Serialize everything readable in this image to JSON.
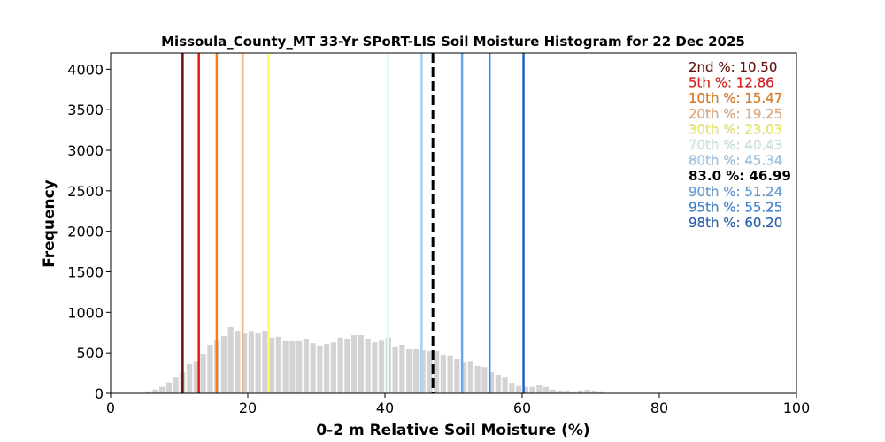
{
  "chart_data": {
    "type": "bar",
    "title": "Missoula_County_MT 33-Yr SPoRT-LIS Soil Moisture Histogram for 22 Dec 2025",
    "xlabel": "0-2 m Relative Soil Moisture (%)",
    "ylabel": "Frequency",
    "xlim": [
      0,
      100
    ],
    "ylim": [
      0,
      4200
    ],
    "xticks": [
      0,
      20,
      40,
      60,
      80,
      100
    ],
    "yticks": [
      0,
      500,
      1000,
      1500,
      2000,
      2500,
      3000,
      3500,
      4000
    ],
    "grid": false,
    "bar_color": "#d3d3d3",
    "bin_centers": [
      5.5,
      6.5,
      7.5,
      8.5,
      9.5,
      10.5,
      11.5,
      12.5,
      13.5,
      14.5,
      15.5,
      16.5,
      17.5,
      18.5,
      19.5,
      20.5,
      21.5,
      22.5,
      23.5,
      24.5,
      25.5,
      26.5,
      27.5,
      28.5,
      29.5,
      30.5,
      31.5,
      32.5,
      33.5,
      34.5,
      35.5,
      36.5,
      37.5,
      38.5,
      39.5,
      40.5,
      41.5,
      42.5,
      43.5,
      44.5,
      45.5,
      46.5,
      47.5,
      48.5,
      49.5,
      50.5,
      51.5,
      52.5,
      53.5,
      54.5,
      55.5,
      56.5,
      57.5,
      58.5,
      59.5,
      60.5,
      61.5,
      62.5,
      63.5,
      64.5,
      65.5,
      66.5,
      67.5,
      68.5,
      69.5,
      70.5,
      71.5
    ],
    "values": [
      25,
      45,
      80,
      135,
      195,
      260,
      360,
      400,
      490,
      600,
      650,
      710,
      820,
      775,
      740,
      760,
      740,
      775,
      690,
      700,
      645,
      645,
      645,
      665,
      620,
      590,
      610,
      630,
      690,
      665,
      720,
      720,
      675,
      630,
      650,
      690,
      580,
      600,
      545,
      545,
      535,
      525,
      525,
      470,
      460,
      425,
      380,
      400,
      340,
      325,
      260,
      230,
      195,
      130,
      90,
      80,
      80,
      100,
      80,
      45,
      35,
      35,
      25,
      35,
      45,
      35,
      25
    ],
    "percentile_lines": [
      {
        "label": "2nd %: 10.50",
        "value": 10.5,
        "color": "#6b0c0c",
        "style": "solid"
      },
      {
        "label": "5th %: 12.86",
        "value": 12.86,
        "color": "#f01414",
        "style": "solid"
      },
      {
        "label": "10th %: 15.47",
        "value": 15.47,
        "color": "#f57c10",
        "style": "solid"
      },
      {
        "label": "20th %: 19.25",
        "value": 19.25,
        "color": "#f9b37a",
        "style": "solid"
      },
      {
        "label": "30th %: 23.03",
        "value": 23.03,
        "color": "#ffff5a",
        "style": "solid"
      },
      {
        "label": "70th %: 40.43",
        "value": 40.43,
        "color": "#e0fbff",
        "style": "solid"
      },
      {
        "label": "80th %: 45.34",
        "value": 45.34,
        "color": "#a4d2fa",
        "style": "solid"
      },
      {
        "label": "83.0 %: 46.99",
        "value": 46.99,
        "color": "#000000",
        "style": "dashed"
      },
      {
        "label": "90th %: 51.24",
        "value": 51.24,
        "color": "#64a8ec",
        "style": "solid"
      },
      {
        "label": "95th %: 55.25",
        "value": 55.25,
        "color": "#3a8ae6",
        "style": "solid"
      },
      {
        "label": "98th %: 60.20",
        "value": 60.2,
        "color": "#1f62c4",
        "style": "solid"
      }
    ],
    "legend_placement": "top-right"
  }
}
